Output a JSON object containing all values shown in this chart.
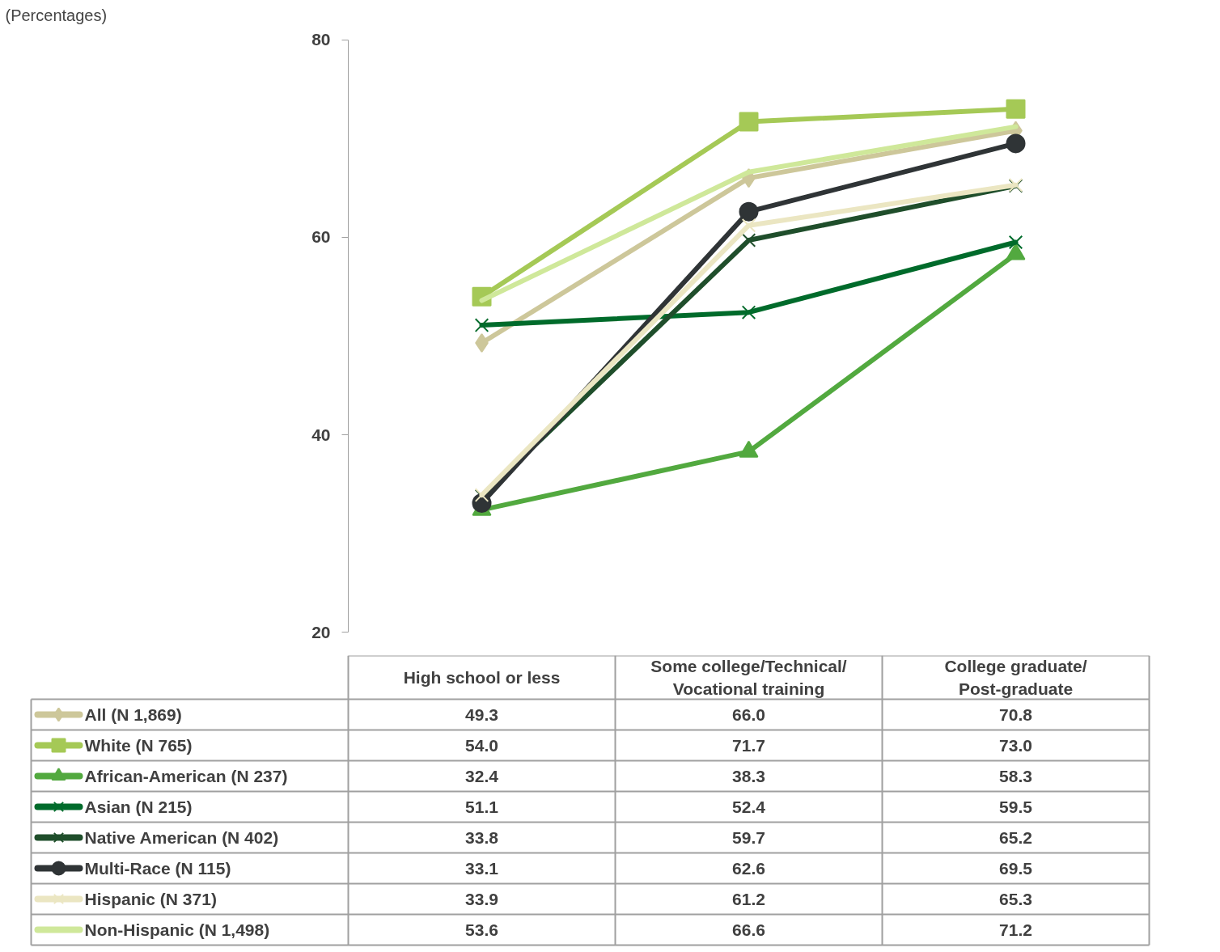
{
  "chart_data": {
    "type": "line",
    "title": "(Percentages)",
    "categories": [
      "High school or less",
      "Some college/Technical/ Vocational training",
      "College graduate/ Post-graduate"
    ],
    "series": [
      {
        "name": "All (N 1,869)",
        "color": "#cdc79a",
        "marker": "diamond",
        "values": [
          49.3,
          66.0,
          70.8
        ],
        "value_labels": [
          "49.3",
          "66.0",
          "70.8"
        ]
      },
      {
        "name": "White (N 765)",
        "color": "#a5c956",
        "marker": "square",
        "values": [
          54.0,
          71.7,
          73.0
        ],
        "value_labels": [
          "54.0",
          "71.7",
          "73.0"
        ]
      },
      {
        "name": "African-American (N 237)",
        "color": "#52a93f",
        "marker": "triangle",
        "values": [
          32.4,
          38.3,
          58.3
        ]
      },
      {
        "name": "Asian (N 215)",
        "color": "#006b2b",
        "marker": "cross",
        "values": [
          51.1,
          52.4,
          59.5
        ]
      },
      {
        "name": "Native American (N 402)",
        "color": "#1f4e2b",
        "marker": "cross",
        "values": [
          33.8,
          59.7,
          65.2
        ]
      },
      {
        "name": "Multi-Race (N 115)",
        "color": "#2f3436",
        "marker": "circle",
        "values": [
          33.1,
          62.6,
          69.5
        ]
      },
      {
        "name": "Hispanic (N 371)",
        "color": "#ebe6c2",
        "marker": "cross",
        "values": [
          33.9,
          61.2,
          65.3
        ]
      },
      {
        "name": "Non-Hispanic (N 1,498)",
        "color": "#cfe89a",
        "marker": "none",
        "values": [
          53.6,
          66.6,
          71.2
        ]
      }
    ],
    "ylim": [
      20,
      80
    ],
    "yticks": [
      20,
      40,
      60,
      80
    ],
    "data_labels": true,
    "legend": "bottom"
  }
}
